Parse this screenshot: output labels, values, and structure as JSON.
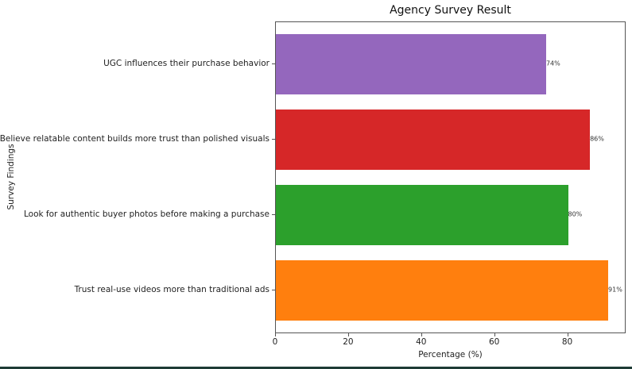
{
  "chart_data": {
    "type": "bar",
    "orientation": "horizontal",
    "title": "Agency Survey Result",
    "xlabel": "Percentage (%)",
    "ylabel": "Survey Findings",
    "xlim": [
      0,
      96
    ],
    "xticks": [
      0,
      20,
      40,
      60,
      80
    ],
    "grid": false,
    "legend": null,
    "categories": [
      "UGC influences their purchase behavior",
      "Believe relatable content builds more trust than polished visuals",
      "Look for authentic buyer photos before making a purchase",
      "Trust real-use videos more than traditional ads"
    ],
    "values": [
      74,
      86,
      80,
      91
    ],
    "value_labels": [
      "74%",
      "86%",
      "80%",
      "91%"
    ],
    "colors": [
      "#9467bd",
      "#d62728",
      "#2ca02c",
      "#ff7f0e"
    ]
  },
  "ui": {
    "bottom_strip_color": "#1e3b35"
  }
}
